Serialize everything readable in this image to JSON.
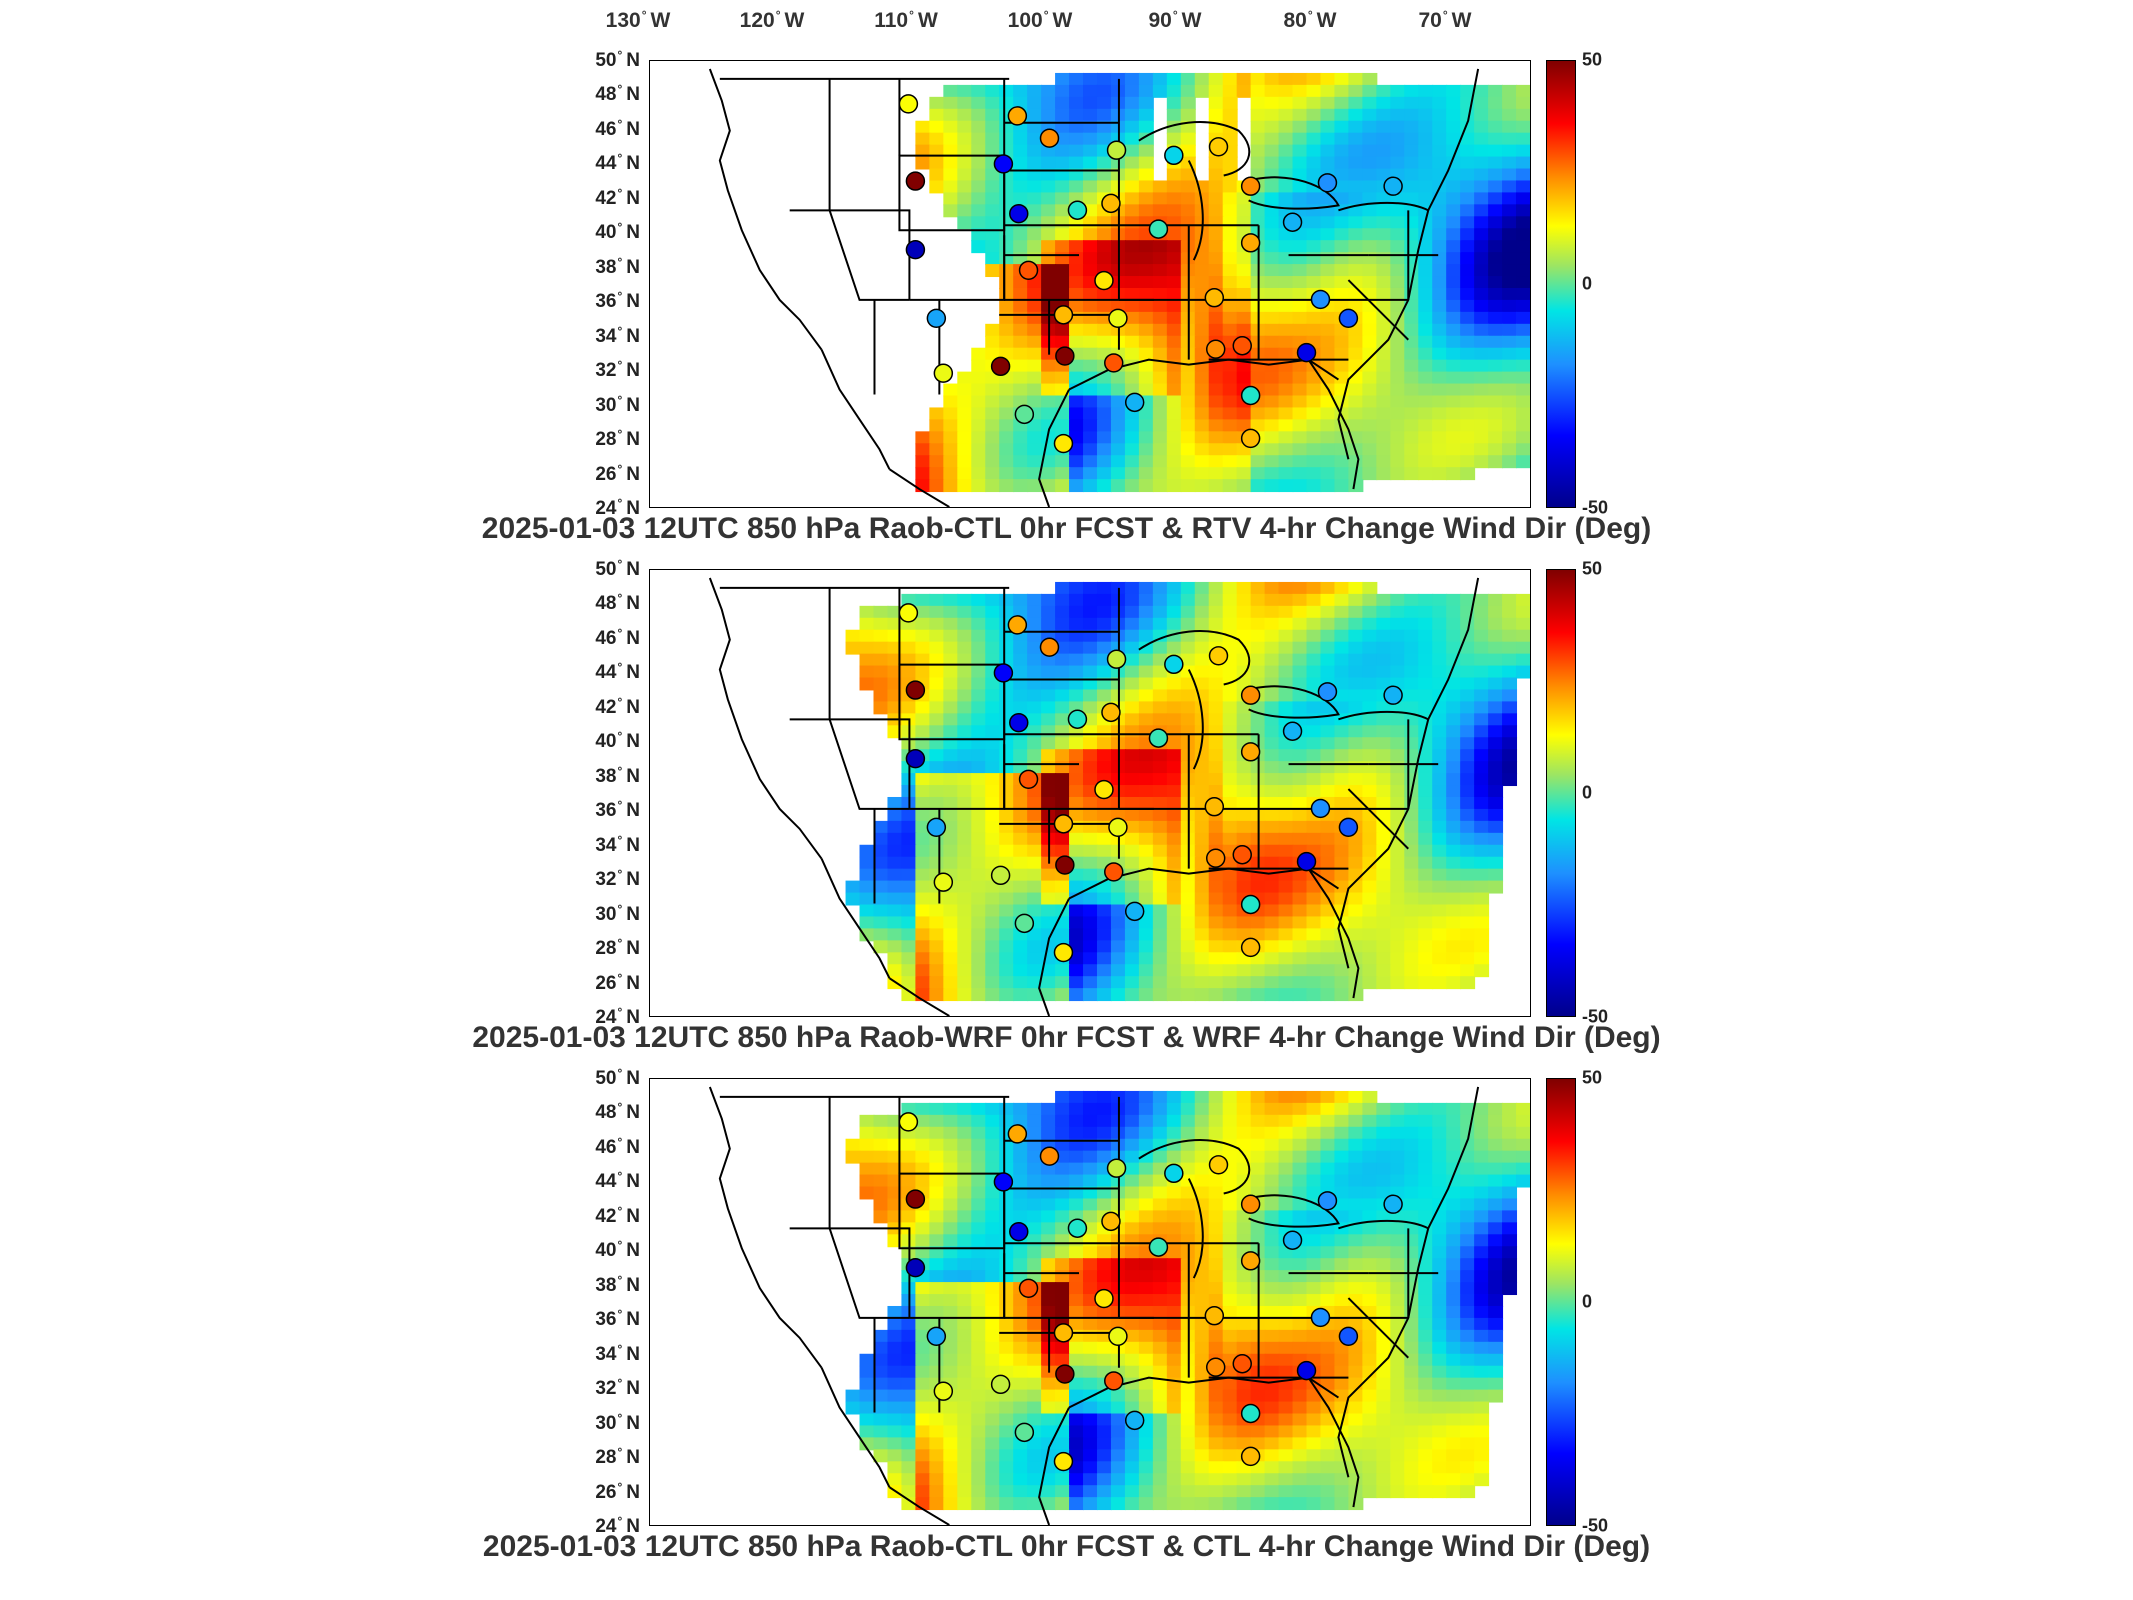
{
  "lon_labels": [
    {
      "deg": "130",
      "dir": "W"
    },
    {
      "deg": "120",
      "dir": "W"
    },
    {
      "deg": "110",
      "dir": "W"
    },
    {
      "deg": "100",
      "dir": "W"
    },
    {
      "deg": "90",
      "dir": "W"
    },
    {
      "deg": "80",
      "dir": "W"
    },
    {
      "deg": "70",
      "dir": "W"
    }
  ],
  "lat_labels": [
    {
      "deg": "50",
      "dir": "N"
    },
    {
      "deg": "48",
      "dir": "N"
    },
    {
      "deg": "46",
      "dir": "N"
    },
    {
      "deg": "44",
      "dir": "N"
    },
    {
      "deg": "42",
      "dir": "N"
    },
    {
      "deg": "40",
      "dir": "N"
    },
    {
      "deg": "38",
      "dir": "N"
    },
    {
      "deg": "36",
      "dir": "N"
    },
    {
      "deg": "34",
      "dir": "N"
    },
    {
      "deg": "32",
      "dir": "N"
    },
    {
      "deg": "30",
      "dir": "N"
    },
    {
      "deg": "28",
      "dir": "N"
    },
    {
      "deg": "26",
      "dir": "N"
    },
    {
      "deg": "24",
      "dir": "N"
    }
  ],
  "colorbar": {
    "max_label": "50",
    "mid_label": "0",
    "min_label": "-50",
    "range": [
      -50,
      50
    ]
  },
  "colorscale": [
    "#00008b",
    "#0000ff",
    "#1e90ff",
    "#00e5e5",
    "#9be564",
    "#ffff00",
    "#ff8c00",
    "#ff0000",
    "#800000"
  ],
  "panels": [
    {
      "caption": "2025-01-03 12UTC 850 hPa Raob-CTL 0hr FCST & RTV 4-hr Change Wind Dir (Deg)"
    },
    {
      "caption": "2025-01-03 12UTC 850 hPa Raob-WRF 0hr FCST & WRF 4-hr Change Wind Dir (Deg)"
    },
    {
      "caption": "2025-01-03 12UTC 850 hPa Raob-CTL 0hr FCST & CTL 4-hr Change Wind Dir (Deg)"
    }
  ],
  "chart_data": {
    "type": "heatmap",
    "value_range": [
      -50,
      50
    ],
    "stations": [
      {
        "lon": -108.5,
        "lat": 47.5,
        "p": [
          12,
          12,
          12
        ]
      },
      {
        "lon": -108.0,
        "lat": 43.0,
        "p": [
          55,
          55,
          55
        ]
      },
      {
        "lon": -108.0,
        "lat": 39.0,
        "p": [
          -45,
          -45,
          -45
        ]
      },
      {
        "lon": -106.5,
        "lat": 35.0,
        "p": [
          -22,
          -22,
          -22
        ]
      },
      {
        "lon": -106.0,
        "lat": 31.8,
        "p": [
          10,
          10,
          10
        ]
      },
      {
        "lon": -100.7,
        "lat": 46.8,
        "p": [
          22,
          22,
          22
        ]
      },
      {
        "lon": -98.4,
        "lat": 45.5,
        "p": [
          25,
          25,
          25
        ]
      },
      {
        "lon": -101.7,
        "lat": 44.0,
        "p": [
          -38,
          -38,
          -38
        ]
      },
      {
        "lon": -100.6,
        "lat": 41.1,
        "p": [
          -40,
          -40,
          -40
        ]
      },
      {
        "lon": -96.4,
        "lat": 41.3,
        "p": [
          -10,
          -10,
          -10
        ]
      },
      {
        "lon": -99.9,
        "lat": 37.8,
        "p": [
          30,
          30,
          30
        ]
      },
      {
        "lon": -97.4,
        "lat": 35.2,
        "p": [
          20,
          20,
          20
        ]
      },
      {
        "lon": -97.3,
        "lat": 32.8,
        "p": [
          55,
          55,
          55
        ]
      },
      {
        "lon": -101.9,
        "lat": 32.2,
        "p": [
          55,
          5,
          5
        ]
      },
      {
        "lon": -97.4,
        "lat": 27.7,
        "p": [
          15,
          15,
          15
        ]
      },
      {
        "lon": -100.2,
        "lat": 29.4,
        "p": [
          -5,
          -5,
          -5
        ]
      },
      {
        "lon": -93.6,
        "lat": 44.8,
        "p": [
          5,
          5,
          5
        ]
      },
      {
        "lon": -89.5,
        "lat": 44.5,
        "p": [
          -15,
          -15,
          -15
        ]
      },
      {
        "lon": -90.6,
        "lat": 40.2,
        "p": [
          -8,
          -8,
          -8
        ]
      },
      {
        "lon": -94.0,
        "lat": 41.7,
        "p": [
          20,
          20,
          20
        ]
      },
      {
        "lon": -94.5,
        "lat": 37.2,
        "p": [
          15,
          15,
          15
        ]
      },
      {
        "lon": -93.5,
        "lat": 35.0,
        "p": [
          10,
          10,
          10
        ]
      },
      {
        "lon": -93.8,
        "lat": 32.4,
        "p": [
          30,
          30,
          30
        ]
      },
      {
        "lon": -92.3,
        "lat": 30.1,
        "p": [
          -20,
          -20,
          -20
        ]
      },
      {
        "lon": -86.3,
        "lat": 45.0,
        "p": [
          18,
          18,
          18
        ]
      },
      {
        "lon": -84.0,
        "lat": 42.7,
        "p": [
          25,
          25,
          25
        ]
      },
      {
        "lon": -84.0,
        "lat": 39.4,
        "p": [
          22,
          22,
          22
        ]
      },
      {
        "lon": -86.6,
        "lat": 36.2,
        "p": [
          20,
          20,
          20
        ]
      },
      {
        "lon": -86.5,
        "lat": 33.2,
        "p": [
          25,
          25,
          25
        ]
      },
      {
        "lon": -84.6,
        "lat": 33.4,
        "p": [
          30,
          30,
          30
        ]
      },
      {
        "lon": -84.0,
        "lat": 30.5,
        "p": [
          -10,
          -10,
          -10
        ]
      },
      {
        "lon": -84.0,
        "lat": 28.0,
        "p": [
          20,
          20,
          20
        ]
      },
      {
        "lon": -81.0,
        "lat": 40.6,
        "p": [
          -20,
          -20,
          -20
        ]
      },
      {
        "lon": -79.0,
        "lat": 36.1,
        "p": [
          -25,
          -25,
          -25
        ]
      },
      {
        "lon": -80.0,
        "lat": 33.0,
        "p": [
          -40,
          -40,
          -40
        ]
      },
      {
        "lon": -77.0,
        "lat": 35.0,
        "p": [
          -30,
          -30,
          -30
        ]
      },
      {
        "lon": -78.5,
        "lat": 42.9,
        "p": [
          -25,
          -25,
          -25
        ]
      },
      {
        "lon": -73.8,
        "lat": 42.7,
        "p": [
          -20,
          -20,
          -20
        ]
      }
    ]
  }
}
